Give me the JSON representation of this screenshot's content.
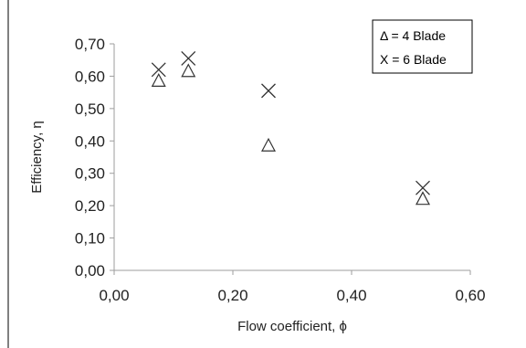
{
  "chart_data": {
    "type": "scatter",
    "xlabel": "Flow coefficient,  ϕ",
    "ylabel": "Efficiency, η",
    "xlim": [
      0,
      0.6
    ],
    "ylim": [
      0,
      0.7
    ],
    "x_ticks": [
      "0,00",
      "0,20",
      "0,40",
      "0,60"
    ],
    "y_ticks": [
      "0,00",
      "0,10",
      "0,20",
      "0,30",
      "0,40",
      "0,50",
      "0,60",
      "0,70"
    ],
    "x_tick_values": [
      0,
      0.2,
      0.4,
      0.6
    ],
    "y_tick_values": [
      0,
      0.1,
      0.2,
      0.3,
      0.4,
      0.5,
      0.6,
      0.7
    ],
    "grid": false,
    "legend_position": "top-right",
    "series": [
      {
        "name": "Δ = 4 Blade",
        "marker": "triangle",
        "x": [
          0.075,
          0.125,
          0.26,
          0.52
        ],
        "y": [
          0.585,
          0.615,
          0.385,
          0.22
        ]
      },
      {
        "name": "X = 6 Blade",
        "marker": "x",
        "x": [
          0.075,
          0.125,
          0.26,
          0.52
        ],
        "y": [
          0.62,
          0.655,
          0.555,
          0.255
        ]
      }
    ]
  }
}
